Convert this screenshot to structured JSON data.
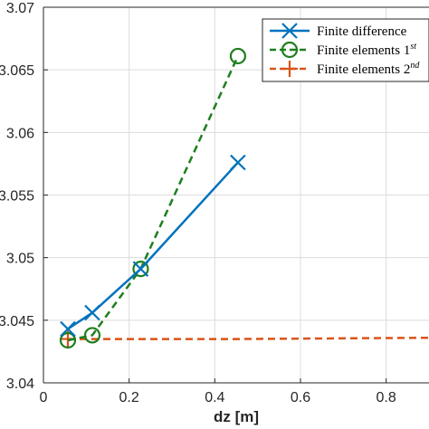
{
  "chart_data": {
    "type": "line",
    "title": "",
    "xlabel": "dz [m]",
    "ylabel": "",
    "xlim": [
      0,
      0.9
    ],
    "ylim": [
      3.04,
      3.07
    ],
    "x_ticks": [
      0,
      0.2,
      0.4,
      0.6,
      0.8
    ],
    "x_tick_labels": [
      "0",
      "0.2",
      "0.4",
      "0.6",
      "0.8"
    ],
    "y_ticks": [
      3.04,
      3.045,
      3.05,
      3.055,
      3.06,
      3.065,
      3.07
    ],
    "y_tick_labels": [
      "3.04",
      "3.045",
      "3.05",
      "3.055",
      "3.06",
      "3.065",
      "3.07"
    ],
    "grid": true,
    "legend_position": "top-right",
    "series": [
      {
        "name": "Finite difference",
        "color": "#0072BD",
        "line_style": "solid",
        "marker": "x",
        "x": [
          0.057,
          0.114,
          0.227,
          0.454
        ],
        "y": [
          3.0443,
          3.0456,
          3.0491,
          3.0576
        ]
      },
      {
        "name": "Finite elements 1",
        "name_superscript": "st",
        "color": "#1E7F1E",
        "line_style": "dashed",
        "marker": "o",
        "x": [
          0.057,
          0.114,
          0.227,
          0.454
        ],
        "y": [
          3.0434,
          3.0438,
          3.0491,
          3.0661
        ]
      },
      {
        "name": "Finite elements 2",
        "name_superscript": "nd",
        "color": "#D95319",
        "line_style": "dashed",
        "marker": "+",
        "x": [
          0.057,
          0.114,
          0.227,
          0.454,
          0.9
        ],
        "y": [
          3.0435,
          3.0435,
          3.0435,
          3.0435,
          3.0436
        ]
      }
    ]
  }
}
